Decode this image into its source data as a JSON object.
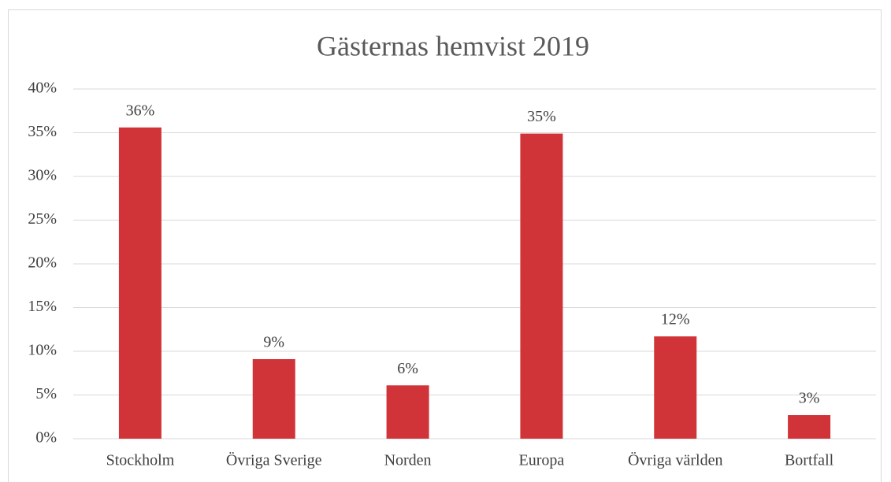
{
  "chart_data": {
    "type": "bar",
    "title": "Gästernas hemvist 2019",
    "categories": [
      "Stockholm",
      "Övriga Sverige",
      "Norden",
      "Europa",
      "Övriga världen",
      "Bortfall"
    ],
    "values": [
      35.6,
      9.1,
      6.1,
      34.9,
      11.7,
      2.7
    ],
    "value_labels": [
      "36%",
      "9%",
      "6%",
      "35%",
      "12%",
      "3%"
    ],
    "color": "#d13438",
    "ylim": [
      0,
      40
    ],
    "yticks": [
      {
        "value": 0,
        "label": "0%"
      },
      {
        "value": 5,
        "label": "5%"
      },
      {
        "value": 10,
        "label": "10%"
      },
      {
        "value": 15,
        "label": "15%"
      },
      {
        "value": 20,
        "label": "20%"
      },
      {
        "value": 25,
        "label": "25%"
      },
      {
        "value": 30,
        "label": "30%"
      },
      {
        "value": 35,
        "label": "35%"
      },
      {
        "value": 40,
        "label": "40%"
      }
    ],
    "grid": true
  }
}
